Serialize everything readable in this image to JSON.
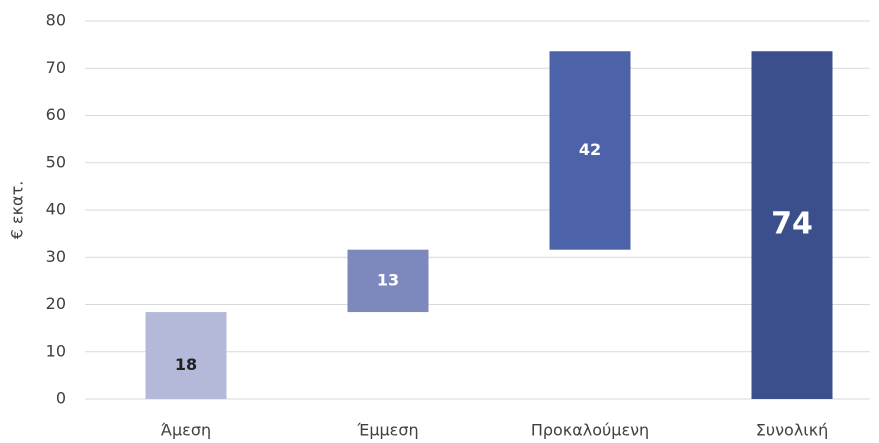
{
  "chart_data": {
    "type": "waterfall",
    "y_axis_label": "€ εκατ.",
    "categories": [
      "Άμεση",
      "Έμμεση",
      "Προκαλούμενη",
      "Συνολική"
    ],
    "values": [
      18.4,
      13.2,
      42,
      73.6
    ],
    "value_labels": [
      "18",
      "13",
      "42",
      "74"
    ],
    "is_total": [
      false,
      false,
      false,
      true
    ],
    "colors": [
      "#b4b9d9",
      "#7d89bd",
      "#4c63a9",
      "#3a4f8b"
    ],
    "ylim": [
      0,
      80
    ],
    "yticks": [
      0,
      10,
      20,
      30,
      40,
      50,
      60,
      70,
      80
    ],
    "grid": true
  }
}
